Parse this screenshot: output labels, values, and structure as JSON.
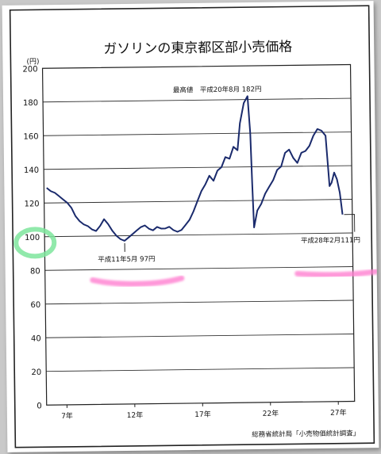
{
  "chart_data": {
    "type": "line",
    "title": "ガソリンの東京都区部小売価格",
    "yunit": "(円)",
    "ylim": [
      0,
      200
    ],
    "yticks": [
      0,
      20,
      40,
      60,
      80,
      100,
      120,
      140,
      160,
      180,
      200
    ],
    "xlim": [
      5.5,
      28.2
    ],
    "xticks": [
      {
        "value": 7,
        "label": "7年"
      },
      {
        "value": 12,
        "label": "12年"
      },
      {
        "value": 17,
        "label": "17年"
      },
      {
        "value": 22,
        "label": "22年"
      },
      {
        "value": 27,
        "label": "27年"
      }
    ],
    "series": [
      {
        "name": "",
        "color": "#1a2a6c",
        "points": [
          [
            5.7,
            129
          ],
          [
            6.0,
            127
          ],
          [
            6.3,
            126
          ],
          [
            6.6,
            124
          ],
          [
            6.9,
            122
          ],
          [
            7.2,
            120
          ],
          [
            7.5,
            117
          ],
          [
            7.8,
            112
          ],
          [
            8.1,
            109
          ],
          [
            8.4,
            107
          ],
          [
            8.7,
            106
          ],
          [
            9.0,
            104
          ],
          [
            9.3,
            103
          ],
          [
            9.6,
            106
          ],
          [
            9.9,
            110
          ],
          [
            10.2,
            107
          ],
          [
            10.5,
            103
          ],
          [
            10.8,
            100
          ],
          [
            11.1,
            98
          ],
          [
            11.4,
            97
          ],
          [
            11.7,
            99
          ],
          [
            12.0,
            101
          ],
          [
            12.3,
            103
          ],
          [
            12.6,
            105
          ],
          [
            12.9,
            106
          ],
          [
            13.2,
            104
          ],
          [
            13.5,
            103
          ],
          [
            13.8,
            105
          ],
          [
            14.1,
            104
          ],
          [
            14.4,
            104
          ],
          [
            14.7,
            105
          ],
          [
            15.0,
            103
          ],
          [
            15.3,
            102
          ],
          [
            15.6,
            103
          ],
          [
            15.9,
            106
          ],
          [
            16.2,
            109
          ],
          [
            16.5,
            114
          ],
          [
            16.8,
            120
          ],
          [
            17.1,
            126
          ],
          [
            17.4,
            130
          ],
          [
            17.7,
            135
          ],
          [
            18.0,
            132
          ],
          [
            18.3,
            138
          ],
          [
            18.6,
            140
          ],
          [
            18.9,
            146
          ],
          [
            19.2,
            145
          ],
          [
            19.5,
            152
          ],
          [
            19.8,
            150
          ],
          [
            20.0,
            166
          ],
          [
            20.3,
            178
          ],
          [
            20.58,
            182
          ],
          [
            20.75,
            160
          ],
          [
            20.85,
            130
          ],
          [
            20.95,
            104
          ],
          [
            21.2,
            114
          ],
          [
            21.5,
            118
          ],
          [
            21.8,
            124
          ],
          [
            22.1,
            128
          ],
          [
            22.4,
            132
          ],
          [
            22.7,
            138
          ],
          [
            23.0,
            140
          ],
          [
            23.3,
            148
          ],
          [
            23.6,
            150
          ],
          [
            23.9,
            145
          ],
          [
            24.2,
            142
          ],
          [
            24.5,
            148
          ],
          [
            24.8,
            149
          ],
          [
            25.1,
            152
          ],
          [
            25.4,
            158
          ],
          [
            25.7,
            162
          ],
          [
            26.0,
            161
          ],
          [
            26.3,
            158
          ],
          [
            26.55,
            128
          ],
          [
            26.7,
            130
          ],
          [
            26.9,
            136
          ],
          [
            27.1,
            132
          ],
          [
            27.3,
            124
          ],
          [
            27.48,
            111
          ]
        ]
      }
    ],
    "annotations": [
      {
        "text": "最高値　平成20年8月 182円",
        "x": 20.58,
        "y": 182
      },
      {
        "text": "平成11年5月 97円",
        "x": 11.4,
        "y": 97
      },
      {
        "text": "平成28年2月111円",
        "x": 27.48,
        "y": 111
      }
    ],
    "source": "総務省統計局「小売物価統計調査」"
  }
}
